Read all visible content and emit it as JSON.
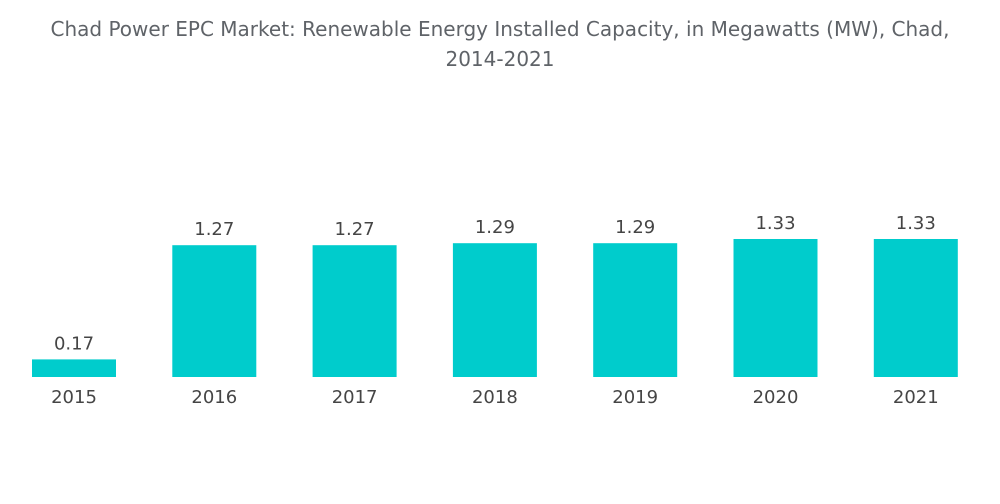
{
  "chart_data": {
    "type": "bar",
    "title_line1": "Chad Power EPC Market: Renewable Energy Installed Capacity, in Megawatts (MW), Chad,",
    "title_line2": "2014-2021",
    "categories": [
      "2015",
      "2016",
      "2017",
      "2018",
      "2019",
      "2020",
      "2021"
    ],
    "values": [
      0.17,
      1.27,
      1.27,
      1.29,
      1.29,
      1.33,
      1.33
    ],
    "labels": [
      "0.17",
      "1.27",
      "1.27",
      "1.29",
      "1.29",
      "1.33",
      "1.33"
    ],
    "xlabel": "",
    "ylabel": "",
    "ylim": [
      0,
      1.33
    ],
    "grid": false,
    "legend": "none",
    "bar_color": "#00cccc"
  }
}
